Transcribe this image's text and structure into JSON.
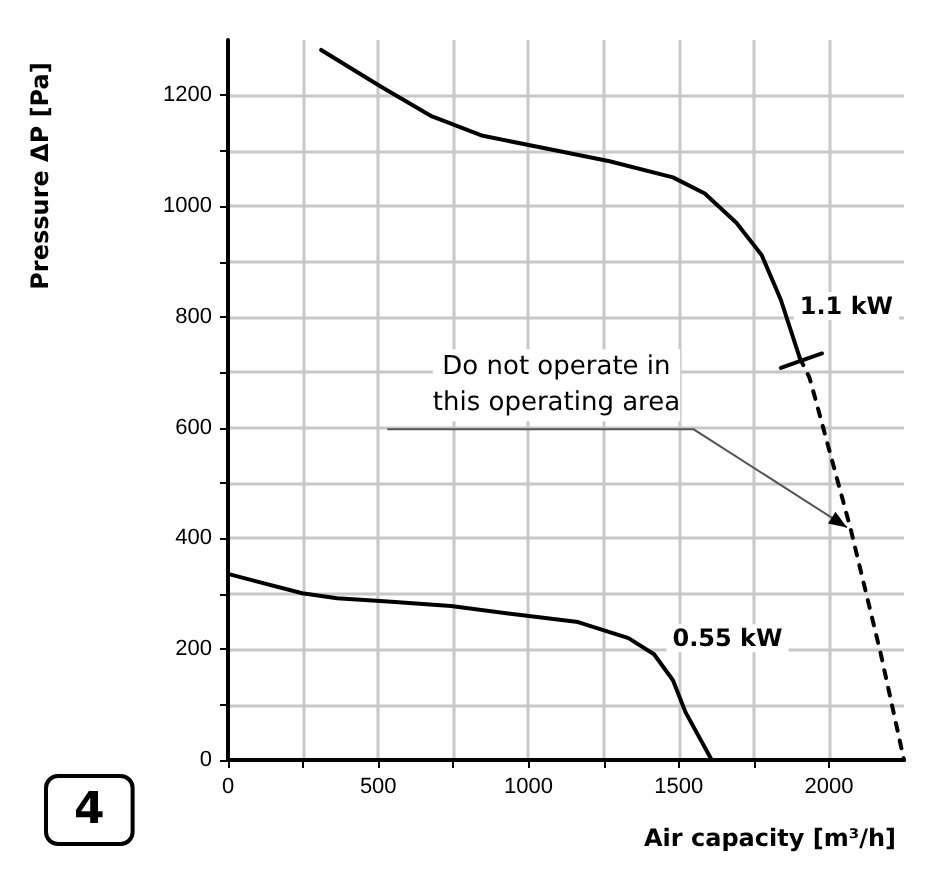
{
  "chart_data": {
    "type": "line",
    "xlabel": "Air capacity [m³/h]",
    "ylabel": "Pressure ΔP [Pa]",
    "xlim": [
      0,
      2250
    ],
    "ylim": [
      0,
      1300
    ],
    "xticks": [
      0,
      {
        "value": 250,
        "label": null
      },
      500,
      {
        "value": 750,
        "label": null
      },
      1000,
      {
        "value": 1250,
        "label": null
      },
      1500,
      {
        "value": 1750,
        "label": null
      },
      2000
    ],
    "yticks": [
      0,
      {
        "value": 100,
        "label": null
      },
      200,
      {
        "value": 300,
        "label": null
      },
      400,
      {
        "value": 500,
        "label": null
      },
      600,
      {
        "value": 700,
        "label": null
      },
      800,
      {
        "value": 900,
        "label": null
      },
      1000,
      {
        "value": 1100,
        "label": null
      },
      1200
    ],
    "grid": true,
    "legend": false,
    "marker": "none",
    "line_style": "solid",
    "series": [
      {
        "name": "1.1 kW",
        "color": "#000000",
        "x": [
          310,
          511,
          679,
          848,
          1059,
          1270,
          1481,
          1587,
          1692,
          1776,
          1840,
          1903
        ],
        "values": [
          1282,
          1215,
          1162,
          1127,
          1104,
          1081,
          1052,
          1023,
          970,
          912,
          831,
          726
        ]
      },
      {
        "color": "#000000",
        "line_style": "dashed",
        "x": [
          1903,
          1935,
          1956,
          2072,
          2173,
          2250
        ],
        "values": [
          726,
          691,
          650,
          418,
          191,
          0
        ]
      },
      {
        "color": "#000000",
        "x": [
          1840,
          1977
        ],
        "values": [
          708,
          734
        ]
      },
      {
        "name": "0.55 kW",
        "color": "#000000",
        "x": [
          0,
          247,
          363,
          532,
          742,
          954,
          1165,
          1333,
          1418,
          1481,
          1523,
          1610
        ],
        "values": [
          336,
          301,
          292,
          286,
          278,
          263,
          249,
          220,
          191,
          144,
          86,
          0
        ]
      }
    ],
    "annotations": [
      {
        "text": "Do not operate in this operating area",
        "x": 2060,
        "y": 420
      },
      "4"
    ]
  }
}
